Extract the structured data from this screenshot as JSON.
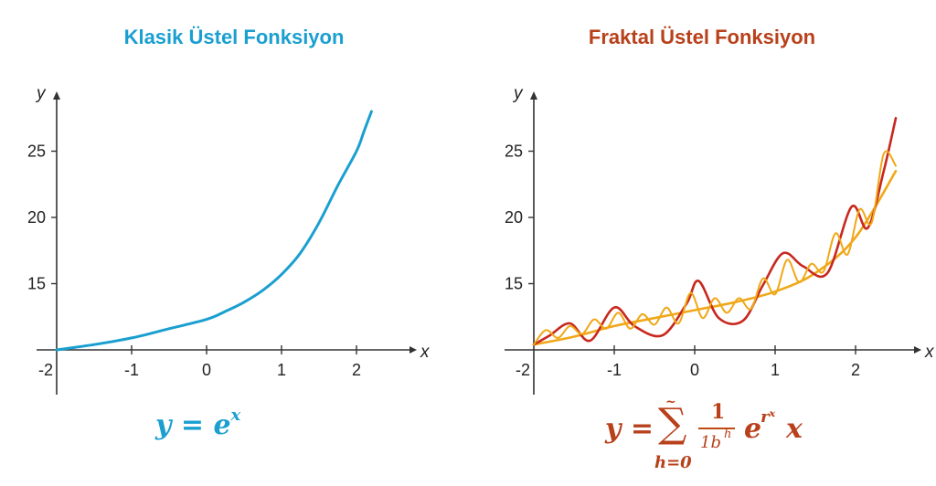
{
  "colors": {
    "classic": "#1a9fd0",
    "fractal_title": "#b8401a",
    "fractal_red": "#c8281e",
    "fractal_orange": "#f0a818",
    "axis": "#333333"
  },
  "chart_data": [
    {
      "type": "line",
      "title": "Klasik Üstel Fonksiyon",
      "xlabel": "x",
      "ylabel": "y",
      "xlim": [
        -2,
        2.4
      ],
      "ylim": [
        10,
        28
      ],
      "xticks": [
        -2,
        -1,
        0,
        1,
        2
      ],
      "xtick_labels": [
        "-2",
        "-1",
        "0",
        "1",
        "2"
      ],
      "yticks": [
        15,
        20,
        25
      ],
      "ytick_labels": [
        "15",
        "20",
        "25"
      ],
      "series": [
        {
          "color": "#1a9fd0",
          "x": [
            -2.0,
            -1.5,
            -1.0,
            -0.5,
            0.0,
            0.25,
            0.5,
            0.75,
            1.0,
            1.25,
            1.5,
            1.75,
            2.0,
            2.1,
            2.2
          ],
          "y": [
            10.0,
            10.4,
            10.9,
            11.6,
            12.3,
            12.9,
            13.6,
            14.5,
            15.7,
            17.3,
            19.6,
            22.4,
            25.0,
            26.5,
            28.0
          ]
        }
      ],
      "formula": {
        "lhs": "y = e",
        "exp": "x"
      }
    },
    {
      "type": "line",
      "title": "Fraktal Üstel Fonksiyon",
      "xlabel": "x",
      "ylabel": "y",
      "xlim": [
        -2,
        2.6
      ],
      "ylim": [
        10,
        28
      ],
      "xticks": [
        -2,
        -1,
        0,
        1,
        2
      ],
      "xtick_labels": [
        "-2",
        "-1",
        "0",
        "1",
        "2"
      ],
      "yticks": [
        15,
        20,
        25
      ],
      "ytick_labels": [
        "15",
        "20",
        "25"
      ],
      "series": [
        {
          "color": "#f0a818",
          "x": [
            -2.0,
            -1.5,
            -1.0,
            -0.5,
            0.0,
            0.5,
            1.0,
            1.5,
            2.0,
            2.5
          ],
          "y": [
            10.4,
            11.0,
            11.8,
            12.4,
            13.0,
            13.6,
            14.4,
            15.8,
            18.5,
            23.5
          ]
        },
        {
          "color": "#c8281e",
          "x": [
            -2.0,
            -1.8,
            -1.55,
            -1.3,
            -1.0,
            -0.75,
            -0.4,
            -0.1,
            0.05,
            0.3,
            0.6,
            0.85,
            1.1,
            1.35,
            1.65,
            1.95,
            2.15,
            2.35,
            2.5
          ],
          "y": [
            10.4,
            11.1,
            12.0,
            10.7,
            13.2,
            11.8,
            11.1,
            13.5,
            15.2,
            12.4,
            12.2,
            14.9,
            17.3,
            16.3,
            15.8,
            20.8,
            19.2,
            23.5,
            27.5
          ]
        },
        {
          "color": "#f0a818",
          "x": [
            -2.0,
            -1.85,
            -1.7,
            -1.55,
            -1.4,
            -1.25,
            -1.1,
            -0.95,
            -0.8,
            -0.65,
            -0.5,
            -0.35,
            -0.2,
            -0.05,
            0.1,
            0.25,
            0.4,
            0.55,
            0.7,
            0.85,
            1.0,
            1.15,
            1.3,
            1.45,
            1.6,
            1.75,
            1.9,
            2.05,
            2.2,
            2.35,
            2.5
          ],
          "y": [
            10.4,
            11.5,
            10.9,
            11.8,
            11.2,
            12.3,
            11.6,
            12.8,
            11.6,
            12.7,
            11.9,
            13.2,
            12.0,
            14.3,
            12.4,
            13.9,
            12.8,
            13.9,
            13.1,
            15.4,
            14.2,
            16.8,
            15.1,
            16.5,
            15.9,
            18.8,
            17.2,
            20.6,
            19.6,
            24.8,
            23.9
          ]
        }
      ],
      "formula": {
        "lhs": "y =",
        "sum_top": "~",
        "sum_symbol": "∑",
        "sum_bottom": "h=0",
        "numerator": "1",
        "denominator": "1b",
        "den_exp": "h",
        "term": "e",
        "term_exp": "rˣ",
        "tail": "x"
      }
    }
  ]
}
